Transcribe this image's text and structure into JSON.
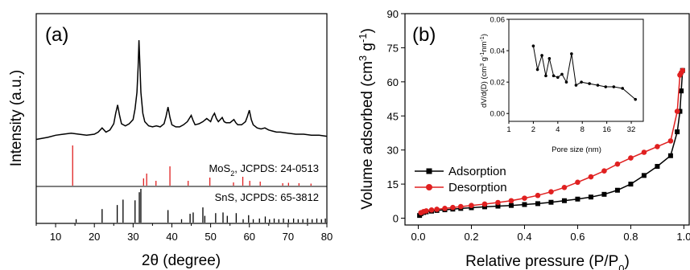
{
  "chart_data": [
    {
      "panel": "(a)",
      "type": "line",
      "xlabel": "2θ (degree)",
      "ylabel": "Intensity (a.u.)",
      "xlim": [
        5,
        80
      ],
      "xticks": [
        10,
        20,
        30,
        40,
        50,
        60,
        70,
        80
      ],
      "grid": false,
      "pattern": {
        "x": [
          5,
          8,
          10,
          12,
          14,
          16,
          18,
          20,
          21,
          22,
          23,
          24,
          25,
          25.5,
          26,
          26.5,
          27,
          28,
          29,
          30,
          30.5,
          31,
          31.3,
          31.5,
          31.7,
          32,
          32.5,
          33,
          34,
          35,
          36,
          37,
          38,
          38.5,
          39,
          39.5,
          40,
          41,
          42,
          43,
          44,
          45,
          45.5,
          46,
          47,
          48,
          49,
          50,
          50.5,
          51,
          51.5,
          52,
          53,
          53.5,
          54,
          55,
          56,
          56.5,
          57,
          58,
          59,
          59.5,
          60,
          60.5,
          61,
          62,
          63,
          64,
          65,
          66,
          67,
          68,
          70,
          72,
          74,
          76,
          78,
          80
        ],
        "y": [
          0.05,
          0.07,
          0.09,
          0.1,
          0.11,
          0.1,
          0.09,
          0.1,
          0.12,
          0.16,
          0.12,
          0.14,
          0.2,
          0.3,
          0.38,
          0.28,
          0.2,
          0.18,
          0.2,
          0.24,
          0.34,
          0.5,
          0.75,
          1.0,
          0.82,
          0.5,
          0.3,
          0.22,
          0.18,
          0.17,
          0.18,
          0.17,
          0.2,
          0.27,
          0.36,
          0.26,
          0.19,
          0.17,
          0.17,
          0.19,
          0.22,
          0.28,
          0.23,
          0.19,
          0.2,
          0.22,
          0.25,
          0.22,
          0.27,
          0.3,
          0.25,
          0.22,
          0.26,
          0.22,
          0.21,
          0.21,
          0.24,
          0.21,
          0.19,
          0.19,
          0.22,
          0.27,
          0.33,
          0.24,
          0.19,
          0.16,
          0.15,
          0.16,
          0.14,
          0.13,
          0.12,
          0.12,
          0.11,
          0.1,
          0.1,
          0.09,
          0.09,
          0.08
        ]
      },
      "references": [
        {
          "label_main": "MoS",
          "label_sub": "2",
          "label_rest": ", JCPDS: 24-0513",
          "color": "#e02020",
          "peaks": [
            [
              14.4,
              1.0
            ],
            [
              32.7,
              0.18
            ],
            [
              33.5,
              0.3
            ],
            [
              35.9,
              0.12
            ],
            [
              39.5,
              0.48
            ],
            [
              44.2,
              0.12
            ],
            [
              49.8,
              0.2
            ],
            [
              55.9,
              0.08
            ],
            [
              58.3,
              0.22
            ],
            [
              60.1,
              0.12
            ],
            [
              62.8,
              0.1
            ],
            [
              68.6,
              0.06
            ],
            [
              70.1,
              0.07
            ],
            [
              72.8,
              0.06
            ],
            [
              75.9,
              0.05
            ]
          ]
        },
        {
          "label": "SnS, JCPDS: 65-3812",
          "color": "#000000",
          "peaks": [
            [
              15.3,
              0.1
            ],
            [
              22.0,
              0.4
            ],
            [
              25.9,
              0.52
            ],
            [
              27.4,
              0.68
            ],
            [
              30.5,
              0.66
            ],
            [
              31.6,
              0.9
            ],
            [
              32.0,
              1.0
            ],
            [
              39.0,
              0.37
            ],
            [
              42.5,
              0.1
            ],
            [
              44.7,
              0.26
            ],
            [
              45.5,
              0.3
            ],
            [
              48.0,
              0.45
            ],
            [
              48.5,
              0.2
            ],
            [
              51.3,
              0.28
            ],
            [
              53.2,
              0.3
            ],
            [
              54.3,
              0.2
            ],
            [
              56.6,
              0.28
            ],
            [
              58.4,
              0.1
            ],
            [
              59.8,
              0.22
            ],
            [
              61.0,
              0.1
            ],
            [
              62.6,
              0.12
            ],
            [
              64.1,
              0.18
            ],
            [
              65.2,
              0.1
            ],
            [
              66.4,
              0.12
            ],
            [
              67.6,
              0.1
            ],
            [
              68.8,
              0.12
            ],
            [
              70.1,
              0.1
            ],
            [
              71.4,
              0.12
            ],
            [
              72.6,
              0.1
            ],
            [
              73.8,
              0.1
            ],
            [
              75.0,
              0.12
            ],
            [
              76.2,
              0.1
            ],
            [
              77.4,
              0.12
            ],
            [
              78.6,
              0.1
            ],
            [
              79.6,
              0.12
            ]
          ]
        }
      ]
    },
    {
      "panel": "(b)",
      "type": "line",
      "xlabel_main": "Relative pressure (P/P",
      "xlabel_sub": "0",
      "xlabel_end": ")",
      "ylabel_main": "Volume adsorbed (cm",
      "ylabel_sup1": "3",
      "ylabel_mid": " g",
      "ylabel_sup2": "-1",
      "ylabel_end": ")",
      "xlim": [
        -0.05,
        1.02
      ],
      "ylim": [
        -3,
        90
      ],
      "xticks": [
        "0.0",
        "0.2",
        "0.4",
        "0.6",
        "0.8",
        "1.0"
      ],
      "yticks": [
        "0",
        "15",
        "30",
        "45",
        "60",
        "75",
        "90"
      ],
      "grid": false,
      "legend": "center-left",
      "series": [
        {
          "name": "Adsorption",
          "color": "#000000",
          "marker": "square",
          "x": [
            0.005,
            0.01,
            0.02,
            0.03,
            0.05,
            0.07,
            0.1,
            0.13,
            0.16,
            0.2,
            0.25,
            0.3,
            0.35,
            0.4,
            0.45,
            0.5,
            0.55,
            0.6,
            0.65,
            0.7,
            0.75,
            0.8,
            0.85,
            0.9,
            0.95,
            0.975,
            0.985,
            0.99,
            0.995
          ],
          "y": [
            1.2,
            2.0,
            2.5,
            2.8,
            3.1,
            3.4,
            3.7,
            4.0,
            4.3,
            4.6,
            5.0,
            5.3,
            5.6,
            6.0,
            6.4,
            7.0,
            7.7,
            8.4,
            9.3,
            10.5,
            12.3,
            15.0,
            18.8,
            22.8,
            27.5,
            38.0,
            47.0,
            56.0,
            65.0
          ]
        },
        {
          "name": "Desorption",
          "color": "#e02020",
          "marker": "circle",
          "x": [
            0.995,
            0.99,
            0.985,
            0.975,
            0.95,
            0.9,
            0.85,
            0.8,
            0.75,
            0.7,
            0.65,
            0.6,
            0.55,
            0.5,
            0.45,
            0.4,
            0.35,
            0.3,
            0.25,
            0.2,
            0.16,
            0.13,
            0.1,
            0.07,
            0.05,
            0.03,
            0.02,
            0.01
          ],
          "y": [
            65.0,
            64.0,
            63.0,
            47.0,
            34.0,
            31.5,
            29.0,
            26.5,
            23.8,
            20.8,
            18.2,
            15.8,
            13.5,
            11.6,
            10.0,
            8.8,
            7.7,
            6.9,
            6.2,
            5.6,
            5.1,
            4.7,
            4.3,
            3.9,
            3.6,
            3.2,
            2.9,
            2.4
          ]
        }
      ],
      "inset": {
        "type": "line",
        "xlabel": "Pore size (nm)",
        "ylabel_main": "dV/d(D) (cm",
        "ylabel_sup1": "3",
        "ylabel_mid": " g",
        "ylabel_sup2": "-1",
        "ylabel_mid2": "nm",
        "ylabel_sup3": "-1",
        "ylabel_end": ")",
        "xscale": "log2",
        "xlim": [
          1,
          45
        ],
        "ylim": [
          -0.005,
          0.06
        ],
        "xticks": [
          "1",
          "2",
          "4",
          "8",
          "16",
          "32"
        ],
        "yticks": [
          "0.00",
          "0.02",
          "0.04",
          "0.06"
        ],
        "color": "#000000",
        "marker": "circle",
        "x": [
          2.0,
          2.25,
          2.55,
          2.85,
          3.15,
          3.55,
          4.0,
          4.5,
          5.1,
          5.9,
          6.7,
          7.8,
          9.8,
          12.4,
          15.5,
          19.5,
          25.0,
          36.0
        ],
        "y": [
          0.043,
          0.028,
          0.037,
          0.024,
          0.035,
          0.024,
          0.023,
          0.025,
          0.02,
          0.038,
          0.018,
          0.02,
          0.019,
          0.018,
          0.017,
          0.017,
          0.016,
          0.009
        ]
      }
    }
  ]
}
